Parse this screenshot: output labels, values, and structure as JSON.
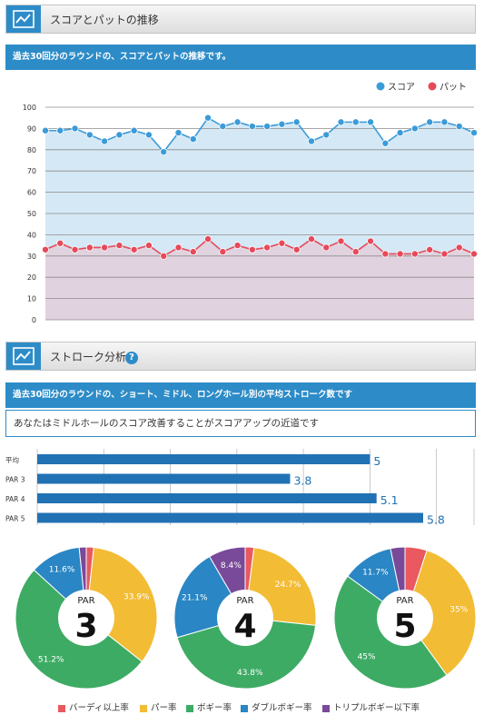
{
  "section1": {
    "title": "スコアとパットの推移",
    "banner": "過去30回分のラウンドの、スコアとパットの推移です。"
  },
  "section2": {
    "title": "ストローク分析",
    "help": "?",
    "banner": "過去30回分のラウンドの、ショート、ミドル、ロングホール別の平均ストローク数です",
    "advice": "あなたはミドルホールのスコア改善することがスコアアップの近道です"
  },
  "colors": {
    "score": "#3b9bd8",
    "putt": "#e64a5a",
    "score_fill": "#d5e8f5",
    "putt_fill": "#e0d3df",
    "bar": "#2172b4",
    "birdie": "#e9595f",
    "par": "#f2bc35",
    "bogey": "#3dab64",
    "double": "#2a86c4",
    "triple": "#7a4a9a"
  },
  "chart_data": [
    {
      "type": "line",
      "ylim": [
        0,
        100
      ],
      "yticks": [
        "0",
        "10",
        "20",
        "30",
        "40",
        "50",
        "60",
        "70",
        "80",
        "90",
        "100"
      ],
      "grid": true,
      "legend_position": "top-right",
      "series": [
        {
          "name": "スコア",
          "values": [
            89,
            89,
            90,
            87,
            84,
            87,
            89,
            87,
            79,
            88,
            85,
            95,
            91,
            93,
            91,
            91,
            92,
            93,
            84,
            87,
            93,
            93,
            93,
            83,
            88,
            90,
            93,
            93,
            91,
            88
          ]
        },
        {
          "name": "パット",
          "values": [
            33,
            36,
            33,
            34,
            34,
            35,
            33,
            35,
            30,
            34,
            32,
            38,
            32,
            35,
            33,
            34,
            36,
            33,
            38,
            34,
            37,
            32,
            37,
            31,
            31,
            31,
            33,
            31,
            34,
            31
          ]
        }
      ]
    },
    {
      "type": "bar",
      "orientation": "horizontal",
      "categories": [
        "平均",
        "PAR 3",
        "PAR 4",
        "PAR 5"
      ],
      "values": [
        5,
        3.8,
        5.1,
        5.8
      ],
      "value_labels": [
        "5",
        "3.8",
        "5.1",
        "5.8"
      ],
      "xlim": [
        0,
        5.8
      ]
    },
    {
      "type": "pie",
      "center_label": "PAR",
      "center_number": "3",
      "slices": [
        {
          "name": "バーディ以上率",
          "value": 1.7,
          "label": ""
        },
        {
          "name": "パー率",
          "value": 33.9,
          "label": "33.9%"
        },
        {
          "name": "ボギー率",
          "value": 51.2,
          "label": "51.2%"
        },
        {
          "name": "ダブルボギー率",
          "value": 11.6,
          "label": "11.6%"
        },
        {
          "name": "トリプルボギー以下率",
          "value": 1.6,
          "label": ""
        }
      ]
    },
    {
      "type": "pie",
      "center_label": "PAR",
      "center_number": "4",
      "slices": [
        {
          "name": "バーディ以上率",
          "value": 2.0,
          "label": ""
        },
        {
          "name": "パー率",
          "value": 24.7,
          "label": "24.7%"
        },
        {
          "name": "ボギー率",
          "value": 43.8,
          "label": "43.8%"
        },
        {
          "name": "ダブルボギー率",
          "value": 21.1,
          "label": "21.1%"
        },
        {
          "name": "トリプルボギー以下率",
          "value": 8.4,
          "label": "8.4%"
        }
      ]
    },
    {
      "type": "pie",
      "center_label": "PAR",
      "center_number": "5",
      "slices": [
        {
          "name": "バーディ以上率",
          "value": 5.0,
          "label": ""
        },
        {
          "name": "パー率",
          "value": 35,
          "label": "35%"
        },
        {
          "name": "ボギー率",
          "value": 45,
          "label": "45%"
        },
        {
          "name": "ダブルボギー率",
          "value": 11.7,
          "label": "11.7%"
        },
        {
          "name": "トリプルボギー以下率",
          "value": 3.3,
          "label": ""
        }
      ]
    }
  ],
  "legend": [
    {
      "label": "バーディ以上率",
      "color_key": "birdie"
    },
    {
      "label": "パー率",
      "color_key": "par"
    },
    {
      "label": "ボギー率",
      "color_key": "bogey"
    },
    {
      "label": "ダブルボギー率",
      "color_key": "double"
    },
    {
      "label": "トリプルボギー以下率",
      "color_key": "triple"
    }
  ]
}
